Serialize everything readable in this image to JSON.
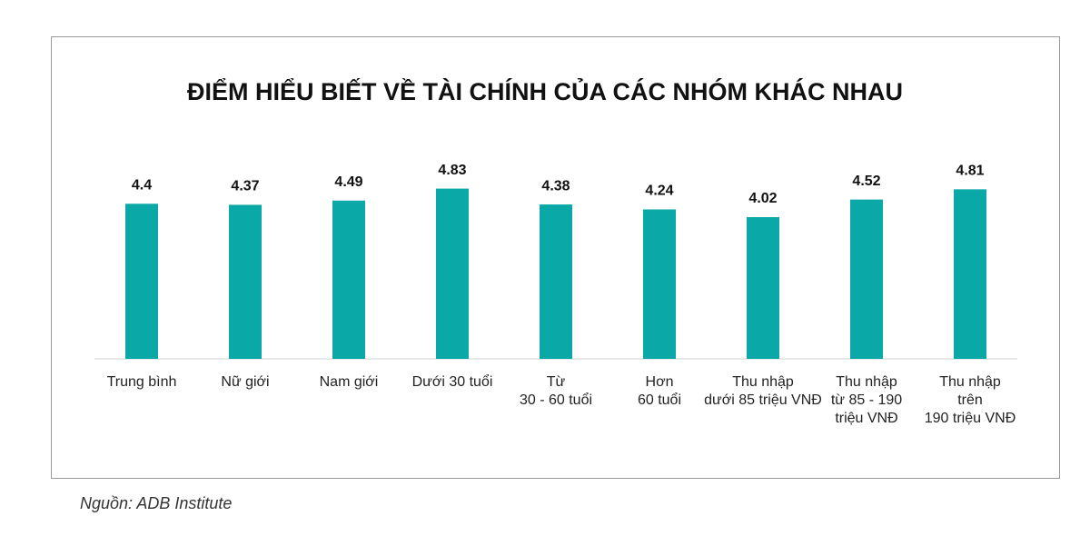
{
  "chart_data": {
    "type": "bar",
    "title": "ĐIỂM HIỂU BIẾT VỀ TÀI CHÍNH CỦA CÁC NHÓM KHÁC NHAU",
    "categories": [
      "Trung bình",
      "Nữ giới",
      "Nam giới",
      "Dưới 30 tuổi",
      "Từ\n30 - 60 tuổi",
      "Hơn\n60 tuổi",
      "Thu nhập\ndưới 85 triệu VNĐ",
      "Thu nhập\ntừ 85 - 190\ntriệu VNĐ",
      "Thu nhập\ntrên\n190 triệu VNĐ"
    ],
    "values": [
      4.4,
      4.37,
      4.49,
      4.83,
      4.38,
      4.24,
      4.02,
      4.52,
      4.81
    ],
    "color": "#0aa9a8"
  },
  "source": "Nguồn: ADB Institute"
}
